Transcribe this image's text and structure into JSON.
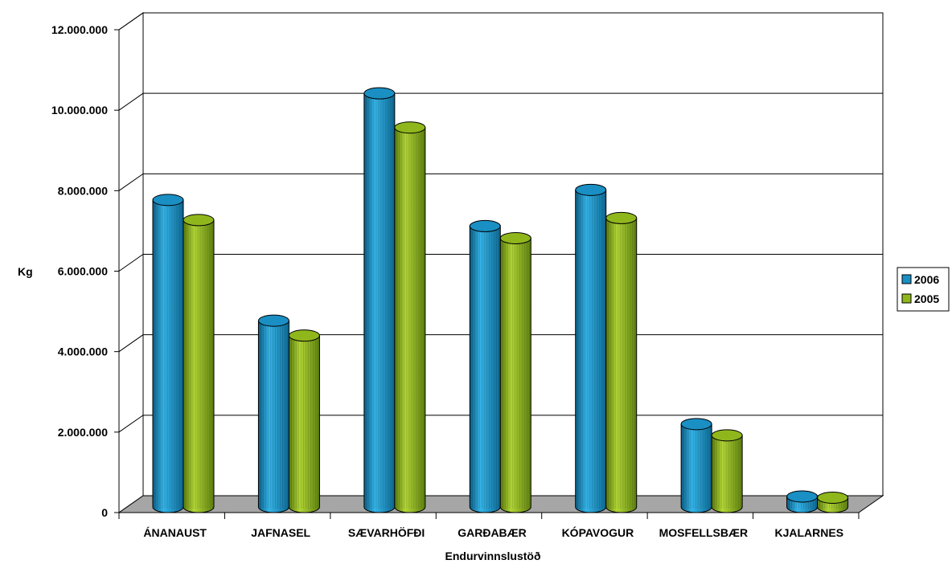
{
  "chart_data": {
    "type": "bar",
    "style": "3d-cylinder",
    "categories": [
      "ÁNANAUST",
      "JAFNASEL",
      "SÆVARHÖFÐI",
      "GARÐABÆR",
      "KÓPAVOGUR",
      "MOSFELLSBÆR",
      "KJALARNES"
    ],
    "series": [
      {
        "name": "2006",
        "color": "#1a8fc4",
        "values": [
          7550000,
          4550000,
          10200000,
          6900000,
          7800000,
          1980000,
          180000
        ]
      },
      {
        "name": "2005",
        "color": "#8fb71c",
        "values": [
          7050000,
          4180000,
          9350000,
          6600000,
          7100000,
          1700000,
          150000
        ]
      }
    ],
    "xlabel": "Endurvinnslustöð",
    "ylabel": "Kg",
    "ylim": [
      0,
      12000000
    ],
    "yticks": [
      0,
      2000000,
      4000000,
      6000000,
      8000000,
      10000000,
      12000000
    ],
    "ytick_labels": [
      "0",
      "2.000.000",
      "4.000.000",
      "6.000.000",
      "8.000.000",
      "10.000.000",
      "12.000.000"
    ],
    "grid": true,
    "legend_position": "right",
    "floor_color": "#a6a6a6"
  }
}
